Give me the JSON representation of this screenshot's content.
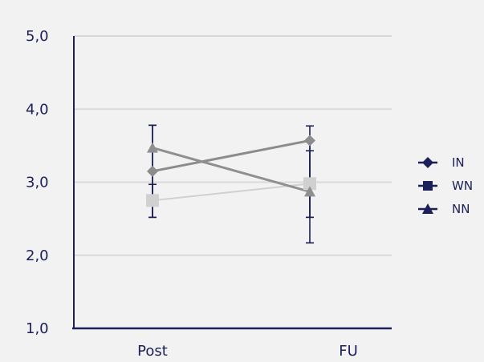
{
  "colors": {
    "background": "#f2f2f2",
    "axis": "#1b1f5a",
    "gridline": "#d9d9d9",
    "error_bar": "#1b1f5a",
    "legend_marker": "#1b1f5a"
  },
  "chart_data": {
    "type": "line",
    "title": "",
    "xlabel": "",
    "ylabel": "",
    "categories": [
      "Post",
      "FU"
    ],
    "ylim": [
      1.0,
      5.0
    ],
    "y_ticks": [
      "1,0",
      "2,0",
      "3,0",
      "4,0",
      "5,0"
    ],
    "y_tick_values": [
      1.0,
      2.0,
      3.0,
      4.0,
      5.0
    ],
    "grid": true,
    "legend_position": "right",
    "series": [
      {
        "name": "IN",
        "marker": "diamond",
        "color": "#8c8c8c",
        "values": [
          3.15,
          3.57
        ],
        "error_low": [
          2.52,
          2.52
        ],
        "error_high": [
          3.78,
          3.77
        ]
      },
      {
        "name": "WN",
        "marker": "square",
        "color": "#d0d0d0",
        "values": [
          2.75,
          2.98
        ],
        "error_low": [
          2.52,
          2.52
        ],
        "error_high": [
          2.97,
          3.43
        ]
      },
      {
        "name": "NN",
        "marker": "triangle",
        "color": "#8f8f8f",
        "values": [
          3.47,
          2.87
        ],
        "error_low": [
          2.52,
          2.17
        ],
        "error_high": [
          3.78,
          3.57
        ]
      }
    ]
  }
}
